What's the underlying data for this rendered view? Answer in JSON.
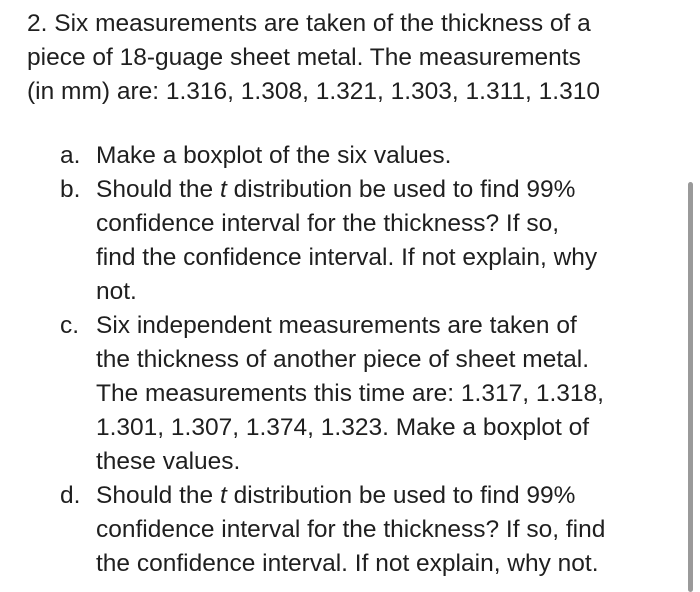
{
  "question": {
    "intro_lines": [
      "2. Six measurements are taken of the thickness of a",
      "piece of 18-guage sheet metal. The measurements",
      "(in mm) are:  1.316, 1.308, 1.321, 1.303, 1.311, 1.310"
    ],
    "items": [
      {
        "marker": "a.",
        "lines": [
          "Make a boxplot of the six values."
        ]
      },
      {
        "marker": "b.",
        "lines": [
          "Should the t distribution be used to find 99%",
          "confidence interval for the thickness? If so,",
          "find the confidence interval. If not explain, why",
          "not."
        ]
      },
      {
        "marker": "c.",
        "lines": [
          "Six independent measurements are taken of",
          "the thickness of another piece of sheet metal.",
          "The measurements this time are: 1.317, 1.318,",
          "1.301, 1.307, 1.374, 1.323.  Make a boxplot of",
          "these values."
        ]
      },
      {
        "marker": "d.",
        "lines": [
          "Should the t distribution be used to find 99%",
          "confidence interval for the thickness? If so, find",
          "the confidence interval. If not explain, why not."
        ]
      }
    ]
  }
}
